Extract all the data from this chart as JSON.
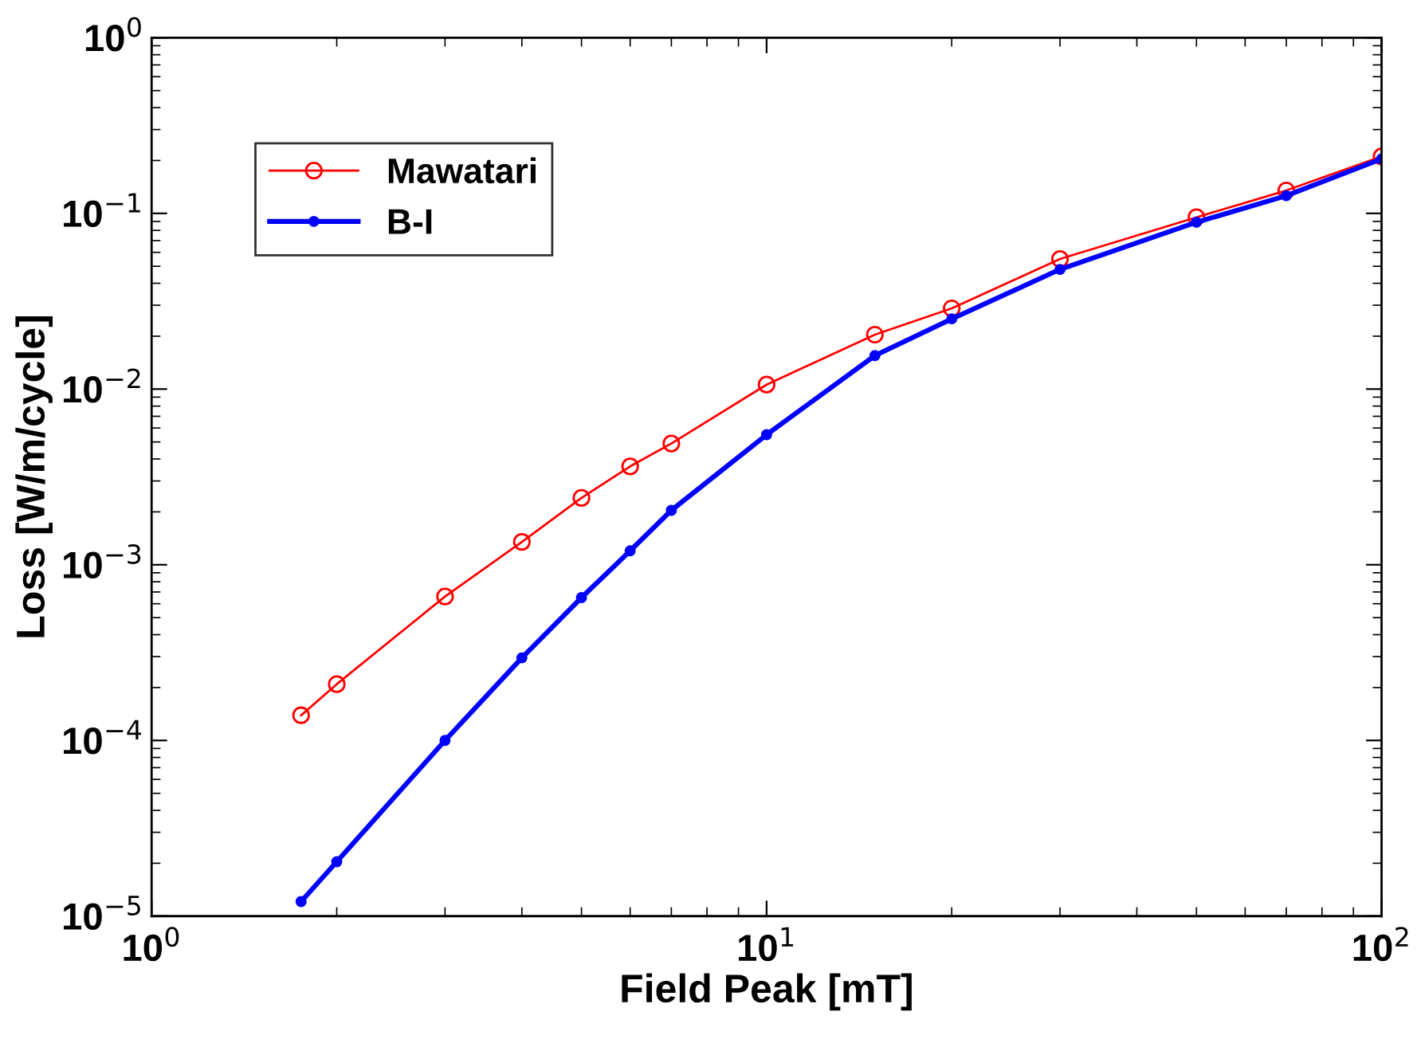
{
  "chart_data": {
    "type": "line",
    "xlabel": "Field Peak [mT]",
    "ylabel": "Loss [W/m/cycle]",
    "log": "xy",
    "xlim": [
      1,
      100
    ],
    "xticks": [
      {
        "value": 1,
        "label": "10$^{0}$"
      },
      {
        "value": 10,
        "label": "10$^{1}$"
      },
      {
        "value": 100,
        "label": "10$^{2}$"
      }
    ],
    "ylim": [
      1e-05,
      1
    ],
    "yticks": [
      {
        "value": 1e-05,
        "label": "10$^{−5}$"
      },
      {
        "value": 0.0001,
        "label": "10$^{−4}$"
      },
      {
        "value": 0.001,
        "label": "10$^{−3}$"
      },
      {
        "value": 0.01,
        "label": "10$^{−2}$"
      },
      {
        "value": 0.1,
        "label": "10$^{−1}$"
      },
      {
        "value": 1,
        "label": "10$^{0}$"
      }
    ],
    "x": [
      1.75,
      2,
      3,
      4,
      5,
      6,
      7,
      10,
      15,
      20,
      30,
      50,
      70,
      100
    ],
    "legend": "top left",
    "grid": false,
    "line_style": "solid",
    "series": [
      {
        "name": "Mawatari",
        "color": "#ff0000",
        "marker": "circle",
        "values": [
          0.000139,
          0.000209,
          0.00066,
          0.00135,
          0.0024,
          0.00363,
          0.0049,
          0.0106,
          0.0204,
          0.0288,
          0.055,
          0.095,
          0.135,
          0.211
        ]
      },
      {
        "name": "B-I",
        "color": "#0000ff",
        "marker": "dot",
        "values": [
          1.21e-05,
          2.04e-05,
          0.0001,
          0.000295,
          0.00065,
          0.0012,
          0.00204,
          0.0055,
          0.0155,
          0.0251,
          0.048,
          0.089,
          0.126,
          0.204
        ]
      }
    ]
  }
}
